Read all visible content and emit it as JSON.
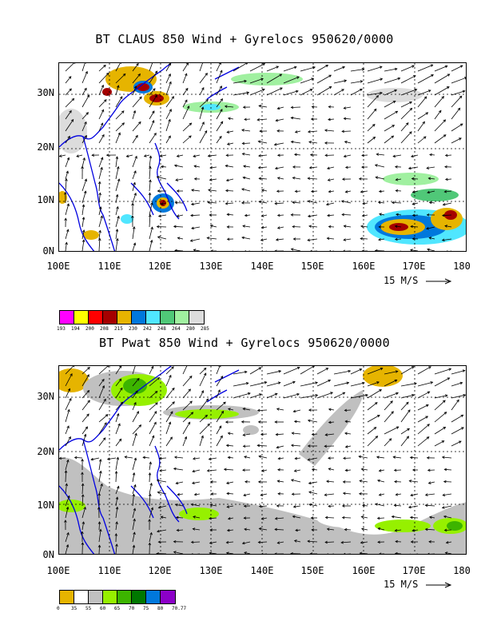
{
  "top": {
    "title": "BT CLAUS 850 Wind + Gyrelocs 950620/0000",
    "colorbar": {
      "colors": [
        "#ff00ff",
        "#ffff00",
        "#ff0000",
        "#a50000",
        "#e6b400",
        "#0078dc",
        "#50e6ff",
        "#50c878",
        "#a0f0a0",
        "#dcdcdc"
      ],
      "labels": [
        "193",
        "194",
        "200",
        "208",
        "215",
        "230",
        "242",
        "248",
        "264",
        "280",
        "285"
      ]
    }
  },
  "bottom": {
    "title": "BT Pwat 850 Wind + Gyrelocs 950620/0000",
    "colorbar": {
      "colors": [
        "#e6b400",
        "#ffffff",
        "#c0c0c0",
        "#96f000",
        "#3cb400",
        "#007800",
        "#0078dc",
        "#8c00c8"
      ],
      "labels": [
        "0",
        "35",
        "55",
        "60",
        "65",
        "70",
        "75",
        "80",
        "70.77"
      ]
    }
  },
  "axes": {
    "lat_labels": [
      "30N",
      "20N",
      "10N",
      "0N"
    ],
    "lon_labels": [
      "100E",
      "110E",
      "120E",
      "130E",
      "140E",
      "150E",
      "160E",
      "170E",
      "180"
    ],
    "scale_label": "15 M/S"
  }
}
